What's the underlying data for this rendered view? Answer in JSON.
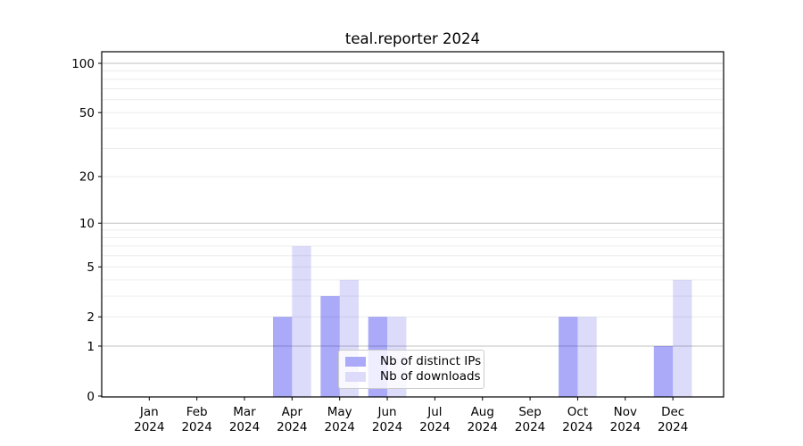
{
  "chart_data": {
    "type": "bar",
    "title": "teal.reporter 2024",
    "categories": [
      "Jan 2024",
      "Feb 2024",
      "Mar 2024",
      "Apr 2024",
      "May 2024",
      "Jun 2024",
      "Jul 2024",
      "Aug 2024",
      "Sep 2024",
      "Oct 2024",
      "Nov 2024",
      "Dec 2024"
    ],
    "series": [
      {
        "name": "Nb of distinct IPs",
        "color": "#aaaaf8",
        "values": [
          0,
          0,
          0,
          2,
          3,
          2,
          0,
          0,
          0,
          2,
          0,
          1
        ]
      },
      {
        "name": "Nb of downloads",
        "color": "#dcdcfa",
        "values": [
          0,
          0,
          0,
          7,
          4,
          2,
          0,
          0,
          0,
          2,
          0,
          4
        ]
      }
    ],
    "xlabel": "",
    "ylabel": "",
    "ylim": [
      0,
      100
    ],
    "yscale": "log1p",
    "yticks": [
      0,
      1,
      2,
      5,
      10,
      20,
      50,
      100
    ],
    "grid": {
      "major_values": [
        1,
        10,
        100
      ],
      "minor_values": [
        2,
        3,
        4,
        5,
        6,
        7,
        8,
        9,
        20,
        30,
        40,
        50,
        60,
        70,
        80,
        90
      ],
      "major_color": "#c2c2c2",
      "minor_color": "#ececec"
    },
    "legend_position": "lower center",
    "axis_color": "#000000",
    "background": "#ffffff"
  }
}
